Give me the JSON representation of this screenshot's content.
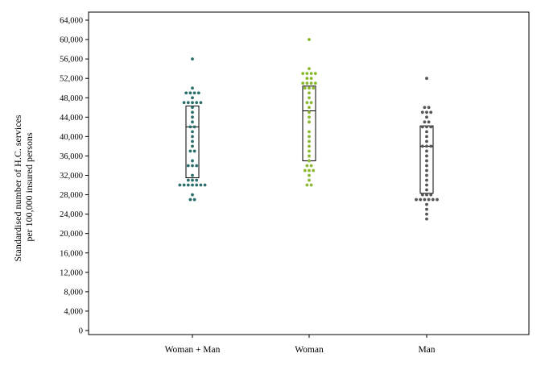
{
  "chart_data": {
    "type": "scatter",
    "subtype": "dot-strip plot with interquartile box per group",
    "title": "",
    "xlabel": "",
    "ylabel_lines": [
      "Standardised number of H.C. services",
      "per 100,000 insured persons"
    ],
    "ylim": [
      0,
      64000
    ],
    "yticks": [
      0,
      4000,
      8000,
      12000,
      16000,
      20000,
      24000,
      28000,
      32000,
      36000,
      40000,
      44000,
      48000,
      52000,
      56000,
      60000,
      64000
    ],
    "ytick_labels": [
      "0",
      "4,000",
      "8,000",
      "12,000",
      "16,000",
      "20,000",
      "24,000",
      "28,000",
      "32,000",
      "36,000",
      "40,000",
      "44,000",
      "48,000",
      "52,000",
      "56,000",
      "60,000",
      "64,000"
    ],
    "categories": [
      "Woman + Man",
      "Woman",
      "Man"
    ],
    "grid": false,
    "legend": "none",
    "series": [
      {
        "category": "Woman + Man",
        "color": "#2a6f6b",
        "q1": 31500,
        "median": 42000,
        "q3": 46300,
        "values": [
          56000,
          50000,
          49000,
          49000,
          49000,
          49000,
          48000,
          47000,
          47000,
          47000,
          47000,
          47000,
          46000,
          45000,
          44000,
          43000,
          42000,
          42000,
          41000,
          40000,
          39000,
          38000,
          37000,
          37000,
          35000,
          34000,
          34000,
          34000,
          32000,
          31000,
          31000,
          31000,
          30000,
          30000,
          30000,
          30000,
          30000,
          30000,
          30000,
          28000,
          27000,
          27000
        ]
      },
      {
        "category": "Woman",
        "color": "#8ab82e",
        "q1": 35000,
        "median": 45300,
        "q3": 50400,
        "values": [
          60000,
          54000,
          53000,
          53000,
          53000,
          53000,
          52000,
          52000,
          51000,
          51000,
          51000,
          51000,
          50000,
          50000,
          50000,
          49000,
          48000,
          47000,
          47000,
          46000,
          45000,
          44000,
          43000,
          41000,
          40000,
          39000,
          38000,
          37000,
          36000,
          35000,
          34000,
          34000,
          33000,
          33000,
          33000,
          32000,
          31000,
          30000,
          30000
        ]
      },
      {
        "category": "Man",
        "color": "#555555",
        "q1": 28300,
        "median": 38000,
        "q3": 42200,
        "values": [
          52000,
          46000,
          46000,
          45000,
          45000,
          45000,
          44000,
          43000,
          43000,
          42000,
          42000,
          42000,
          41000,
          40000,
          39000,
          38000,
          38000,
          38000,
          37000,
          36000,
          35000,
          34000,
          33000,
          32000,
          31000,
          30000,
          29000,
          28000,
          28000,
          28000,
          27000,
          27000,
          27000,
          27000,
          27000,
          27000,
          26000,
          25000,
          24000,
          23000
        ]
      }
    ]
  }
}
